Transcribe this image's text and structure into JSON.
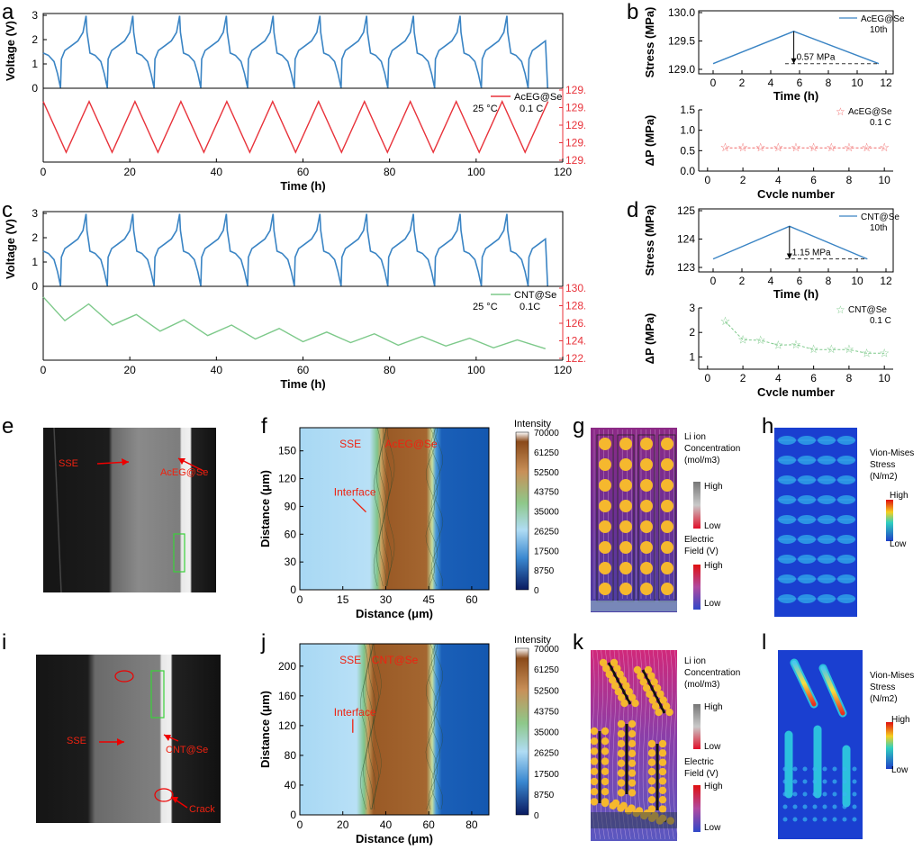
{
  "panel_letters": {
    "a": "a",
    "b": "b",
    "c": "c",
    "d": "d",
    "e": "e",
    "f": "f",
    "g": "g",
    "h": "h",
    "i": "i",
    "j": "j",
    "k": "k",
    "l": "l"
  },
  "colors": {
    "voltage": "#3a84c4",
    "stress_acEG": "#e8323a",
    "stress_cnt": "#7dc98a",
    "axis_red": "#e8323a",
    "star": "#f06a6a"
  },
  "chart_data": [
    {
      "id": "a_voltage",
      "type": "line",
      "ylabel": "Voltage (V)",
      "ylim": [
        0,
        3
      ],
      "yticks": [
        0,
        1,
        2,
        3
      ],
      "xlim": [
        0,
        120
      ],
      "cycle_period_h": 10.8,
      "cycles": 11,
      "series": [
        {
          "values_desc": "charge/discharge profile 0-3 V"
        }
      ]
    },
    {
      "id": "a_stress",
      "type": "line",
      "xlabel": "Time (h)",
      "xticks": [
        0,
        20,
        40,
        60,
        80,
        100,
        120
      ],
      "xlim": [
        0,
        120
      ],
      "ylabel": "Stress (MPa)",
      "ylim": [
        129.0,
        129.8
      ],
      "yticks": [
        "129.0",
        "129.2",
        "129.4",
        "129.6",
        "129.8"
      ],
      "legend": [
        "AcEG@Se",
        "25 °C",
        "0.1 C"
      ],
      "x": [
        0,
        5.3,
        10.6,
        15.9,
        21.2,
        26.5,
        31.8,
        37.1,
        42.4,
        47.7,
        53,
        58.3,
        63.6,
        68.9,
        74.2,
        79.5,
        84.8,
        90.1,
        95.4,
        100.7,
        106,
        111.3,
        116.6
      ],
      "y": [
        129.67,
        129.09,
        129.67,
        129.09,
        129.67,
        129.09,
        129.67,
        129.09,
        129.67,
        129.09,
        129.67,
        129.09,
        129.67,
        129.09,
        129.67,
        129.09,
        129.67,
        129.09,
        129.67,
        129.09,
        129.67,
        129.09,
        129.67
      ]
    },
    {
      "id": "b_top",
      "type": "line",
      "xlabel": "Time (h)",
      "xlim": [
        -1,
        12.5
      ],
      "xticks": [
        0,
        2,
        4,
        6,
        8,
        10,
        12
      ],
      "ylabel": "Stress (MPa)",
      "ylim": [
        129.0,
        130.0
      ],
      "yticks": [
        "129.0",
        "129.5",
        "130.0"
      ],
      "legend": [
        "AcEG@Se",
        "10th"
      ],
      "annotation": "0.57 MPa",
      "x": [
        0,
        5.6,
        11.5
      ],
      "y": [
        129.1,
        129.67,
        129.1
      ]
    },
    {
      "id": "b_bottom",
      "type": "scatter",
      "xlabel": "Cycle number",
      "xlim": [
        -0.5,
        10.5
      ],
      "xticks": [
        0,
        2,
        4,
        6,
        8,
        10
      ],
      "ylabel": "ΔP (MPa)",
      "ylim": [
        0,
        1.5
      ],
      "yticks": [
        "0.0",
        "0.5",
        "1.0",
        "1.5"
      ],
      "legend": [
        "AcEG@Se",
        "0.1 C"
      ],
      "x": [
        1,
        2,
        3,
        4,
        5,
        6,
        7,
        8,
        9,
        10
      ],
      "y": [
        0.57,
        0.57,
        0.57,
        0.57,
        0.57,
        0.57,
        0.57,
        0.57,
        0.57,
        0.57
      ]
    },
    {
      "id": "c_voltage",
      "type": "line",
      "ylabel": "Voltage (V)",
      "ylim": [
        0,
        3
      ],
      "yticks": [
        0,
        1,
        2,
        3
      ],
      "xlim": [
        0,
        120
      ],
      "cycle_period_h": 10.8,
      "cycles": 11
    },
    {
      "id": "c_stress",
      "type": "line",
      "xlabel": "Time (h)",
      "xticks": [
        0,
        20,
        40,
        60,
        80,
        100,
        120
      ],
      "xlim": [
        0,
        120
      ],
      "ylabel": "Stress (MPa)",
      "ylim": [
        122.0,
        130.0
      ],
      "yticks": [
        "122.0",
        "124.0",
        "126.0",
        "128.0",
        "130.0"
      ],
      "legend": [
        "CNT@Se",
        "25 °C",
        "0.1C"
      ],
      "x": [
        0,
        5,
        10.5,
        16,
        21.5,
        27,
        32.5,
        38,
        43.5,
        49,
        54.5,
        60,
        65.5,
        71,
        76.5,
        82,
        87.5,
        93,
        98.5,
        104,
        109.5,
        116
      ],
      "y": [
        129.0,
        126.3,
        128.2,
        125.8,
        127.0,
        125.1,
        126.4,
        124.6,
        125.8,
        124.2,
        125.4,
        123.9,
        125.0,
        123.8,
        124.8,
        123.5,
        124.5,
        123.4,
        124.3,
        123.2,
        124.1,
        123.1
      ]
    },
    {
      "id": "d_top",
      "type": "line",
      "xlabel": "Time (h)",
      "xlim": [
        -1,
        12.5
      ],
      "xticks": [
        0,
        2,
        4,
        6,
        8,
        10,
        12
      ],
      "ylabel": "Stress (MPa)",
      "ylim": [
        123,
        125
      ],
      "yticks": [
        "123",
        "124",
        "125"
      ],
      "legend": [
        "CNT@Se",
        "10th"
      ],
      "annotation": "1.15 MPa",
      "x": [
        0,
        5.3,
        10.7
      ],
      "y": [
        123.3,
        124.45,
        123.3
      ]
    },
    {
      "id": "d_bottom",
      "type": "scatter",
      "xlabel": "Cycle number",
      "xlim": [
        -0.5,
        10.5
      ],
      "xticks": [
        0,
        2,
        4,
        6,
        8,
        10
      ],
      "ylabel": "ΔP (MPa)",
      "ylim": [
        0.5,
        3.0
      ],
      "yticks": [
        "1",
        "2",
        "3"
      ],
      "legend": [
        "CNT@Se",
        "0.1 C"
      ],
      "x": [
        1,
        2,
        3,
        4,
        5,
        6,
        7,
        8,
        9,
        10
      ],
      "y": [
        2.45,
        1.7,
        1.68,
        1.48,
        1.5,
        1.3,
        1.3,
        1.3,
        1.15,
        1.15
      ]
    },
    {
      "id": "f_map",
      "type": "heatmap",
      "xlabel": "Distance (μm)",
      "xticks": [
        0,
        15,
        30,
        45,
        60
      ],
      "ylabel": "Distance (μm)",
      "yticks": [
        0,
        30,
        60,
        90,
        120,
        150
      ],
      "colorbar_title": "Intensity",
      "colorbar_ticks": [
        "70000",
        "61250",
        "52500",
        "43750",
        "35000",
        "26250",
        "17500",
        "8750",
        "0"
      ],
      "annotations": [
        "SSE",
        "AcEG@Se",
        "Interface"
      ]
    },
    {
      "id": "j_map",
      "type": "heatmap",
      "xlabel": "Distance (μm)",
      "xticks": [
        0,
        20,
        40,
        60,
        80
      ],
      "ylabel": "Distance (μm)",
      "yticks": [
        0,
        40,
        80,
        120,
        160,
        200
      ],
      "colorbar_title": "Intensity",
      "colorbar_ticks": [
        "70000",
        "61250",
        "52500",
        "43750",
        "35000",
        "26250",
        "17500",
        "8750",
        "0"
      ],
      "annotations": [
        "SSE",
        "CNT@Se",
        "Interface"
      ]
    }
  ],
  "micrographs": {
    "e": {
      "labels": [
        "SSE",
        "AcEG@Se"
      ]
    },
    "i": {
      "labels": [
        "SSE",
        "CNT@Se",
        "Crack"
      ]
    }
  },
  "simulations": {
    "g": {
      "legend1": [
        "Li ion",
        "Concentration",
        "(mol/m3)",
        "High",
        "Low"
      ],
      "legend2": [
        "Electric",
        "Field (V)",
        "High",
        "Low"
      ]
    },
    "h": {
      "legend": [
        "Vion-Mises",
        "Stress",
        "(N/m2)",
        "High",
        "Low"
      ]
    },
    "k": {
      "legend1": [
        "Li ion",
        "Concentration",
        "(mol/m3)",
        "High",
        "Low"
      ],
      "legend2": [
        "Electric",
        "Field (V)",
        "High",
        "Low"
      ]
    },
    "l": {
      "legend": [
        "Vion-Mises",
        "Stress",
        "(N/m2)",
        "High",
        "Low"
      ]
    }
  }
}
